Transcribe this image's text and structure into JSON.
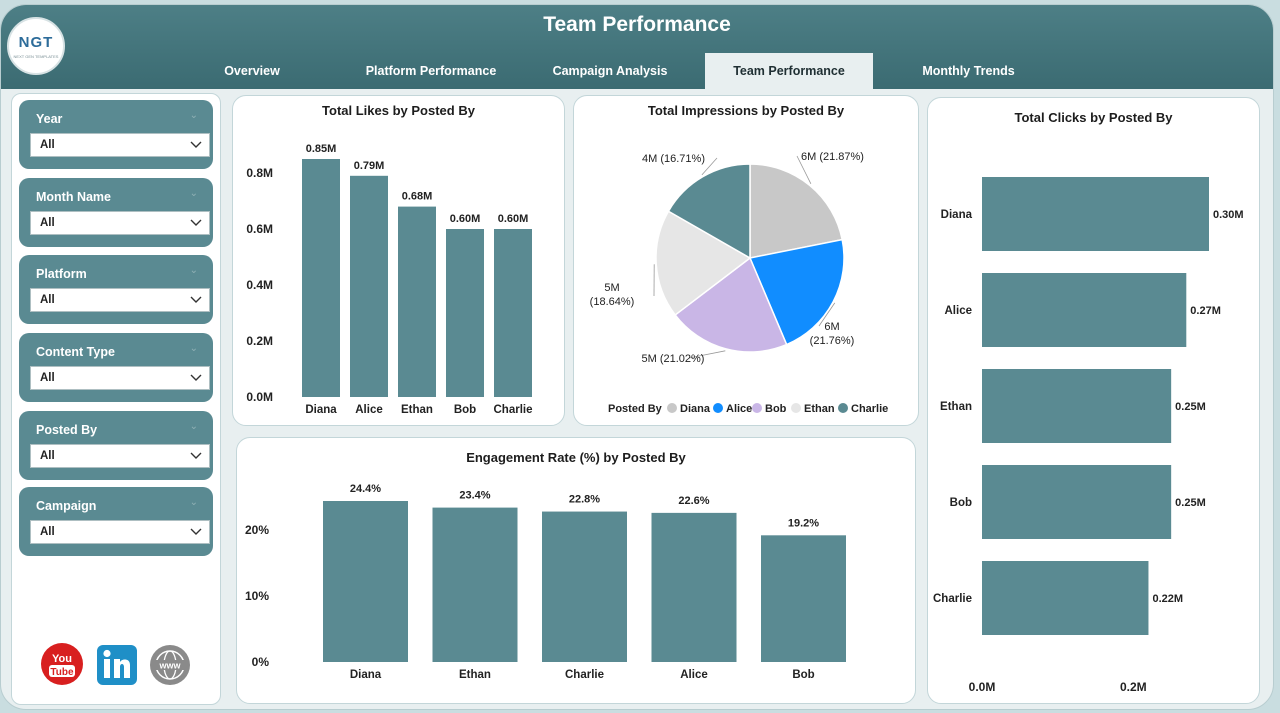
{
  "header": {
    "title": "Team Performance",
    "logo_text": "NGT",
    "logo_subtext": "NEXT GEN TEMPLATES"
  },
  "tabs": [
    {
      "label": "Overview"
    },
    {
      "label": "Platform Performance"
    },
    {
      "label": "Campaign Analysis"
    },
    {
      "label": "Team Performance",
      "active": true
    },
    {
      "label": "Monthly Trends"
    }
  ],
  "filters": [
    {
      "label": "Year",
      "value": "All"
    },
    {
      "label": "Month Name",
      "value": "All"
    },
    {
      "label": "Platform",
      "value": "All"
    },
    {
      "label": "Content Type",
      "value": "All"
    },
    {
      "label": "Posted By",
      "value": "All"
    },
    {
      "label": "Campaign",
      "value": "All"
    }
  ],
  "social_icons": [
    "youtube-icon",
    "linkedin-icon",
    "website-globe-icon"
  ],
  "colors": {
    "bar": "#5a8a92",
    "accent": "#3b6b72",
    "alice": "#118dff",
    "bob": "#c9b6e6",
    "diana": "#c8c8c8",
    "ethan": "#e6e6e6",
    "charlie": "#5a8a92"
  },
  "chart_data": [
    {
      "id": "likes",
      "type": "bar",
      "title": "Total Likes by Posted By",
      "categories": [
        "Diana",
        "Alice",
        "Ethan",
        "Bob",
        "Charlie"
      ],
      "values": [
        0.85,
        0.79,
        0.68,
        0.6,
        0.6
      ],
      "labels": [
        "0.85M",
        "0.79M",
        "0.68M",
        "0.60M",
        "0.60M"
      ],
      "yticks": [
        "0.0M",
        "0.2M",
        "0.4M",
        "0.6M",
        "0.8M"
      ],
      "ylim": [
        0,
        0.85
      ]
    },
    {
      "id": "impressions",
      "type": "pie",
      "title": "Total Impressions by Posted By",
      "legend_title": "Posted By",
      "slices": [
        {
          "name": "Diana",
          "value": 21.87,
          "label": "6M (21.87%)"
        },
        {
          "name": "Alice",
          "value": 21.76,
          "label": "6M (21.76%)"
        },
        {
          "name": "Bob",
          "value": 21.02,
          "label": "5M (21.02%)"
        },
        {
          "name": "Ethan",
          "value": 18.64,
          "label": "5M (18.64%)"
        },
        {
          "name": "Charlie",
          "value": 16.71,
          "label": "4M (16.71%)"
        }
      ]
    },
    {
      "id": "clicks",
      "type": "bar",
      "orientation": "horizontal",
      "title": "Total Clicks by Posted By",
      "categories": [
        "Diana",
        "Alice",
        "Ethan",
        "Bob",
        "Charlie"
      ],
      "values": [
        0.3,
        0.27,
        0.25,
        0.25,
        0.22
      ],
      "labels": [
        "0.30M",
        "0.27M",
        "0.25M",
        "0.25M",
        "0.22M"
      ],
      "xticks": [
        "0.0M",
        "0.2M"
      ],
      "xlim": [
        0,
        0.3
      ]
    },
    {
      "id": "engagement",
      "type": "bar",
      "title": "Engagement Rate (%) by Posted By",
      "categories": [
        "Diana",
        "Ethan",
        "Charlie",
        "Alice",
        "Bob"
      ],
      "values": [
        24.4,
        23.4,
        22.8,
        22.6,
        19.2
      ],
      "labels": [
        "24.4%",
        "23.4%",
        "22.8%",
        "22.6%",
        "19.2%"
      ],
      "yticks": [
        "0%",
        "10%",
        "20%"
      ],
      "ylim": [
        0,
        24.4
      ]
    }
  ]
}
